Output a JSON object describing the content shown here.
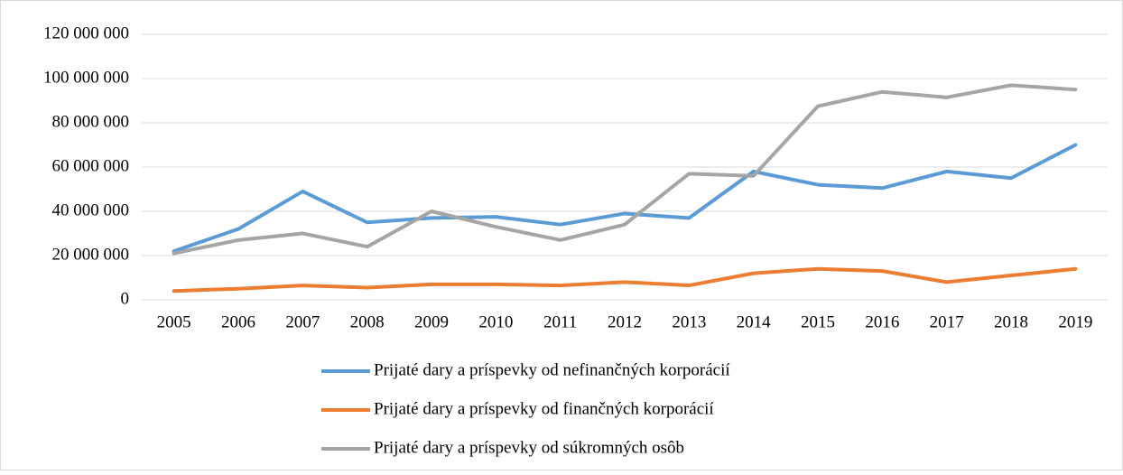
{
  "chart_data": {
    "type": "line",
    "categories": [
      "2005",
      "2006",
      "2007",
      "2008",
      "2009",
      "2010",
      "2011",
      "2012",
      "2013",
      "2014",
      "2015",
      "2016",
      "2017",
      "2018",
      "2019"
    ],
    "series": [
      {
        "name": "Prijaté dary a príspevky od nefinančných korporácií",
        "color": "#5b9bd5",
        "values": [
          22000000,
          32000000,
          49000000,
          35000000,
          37000000,
          37500000,
          34000000,
          39000000,
          37000000,
          58000000,
          52000000,
          50500000,
          58000000,
          55000000,
          70000000
        ]
      },
      {
        "name": "Prijaté dary a príspevky od finančných korporácií",
        "color": "#ed7d31",
        "values": [
          4000000,
          5000000,
          6500000,
          5500000,
          7000000,
          7000000,
          6500000,
          8000000,
          6500000,
          12000000,
          14000000,
          13000000,
          8000000,
          11000000,
          14000000
        ]
      },
      {
        "name": "Prijaté dary a príspevky od súkromných osôb",
        "color": "#a5a5a5",
        "values": [
          21000000,
          27000000,
          30000000,
          24000000,
          40000000,
          33000000,
          27000000,
          34000000,
          57000000,
          56000000,
          87500000,
          94000000,
          91500000,
          97000000,
          95000000
        ]
      }
    ],
    "ylim": [
      0,
      120000000
    ],
    "yticks": [
      0,
      {
        "value": 20000000,
        "label": "20 000 000"
      },
      {
        "value": 40000000,
        "label": "40 000 000"
      },
      {
        "value": 60000000,
        "label": "60 000 000"
      },
      {
        "value": 80000000,
        "label": "80 000 000"
      },
      {
        "value": 100000000,
        "label": "100 000 000"
      },
      {
        "value": 120000000,
        "label": "120 000 000"
      }
    ],
    "grid": true,
    "legend": "bottom"
  }
}
